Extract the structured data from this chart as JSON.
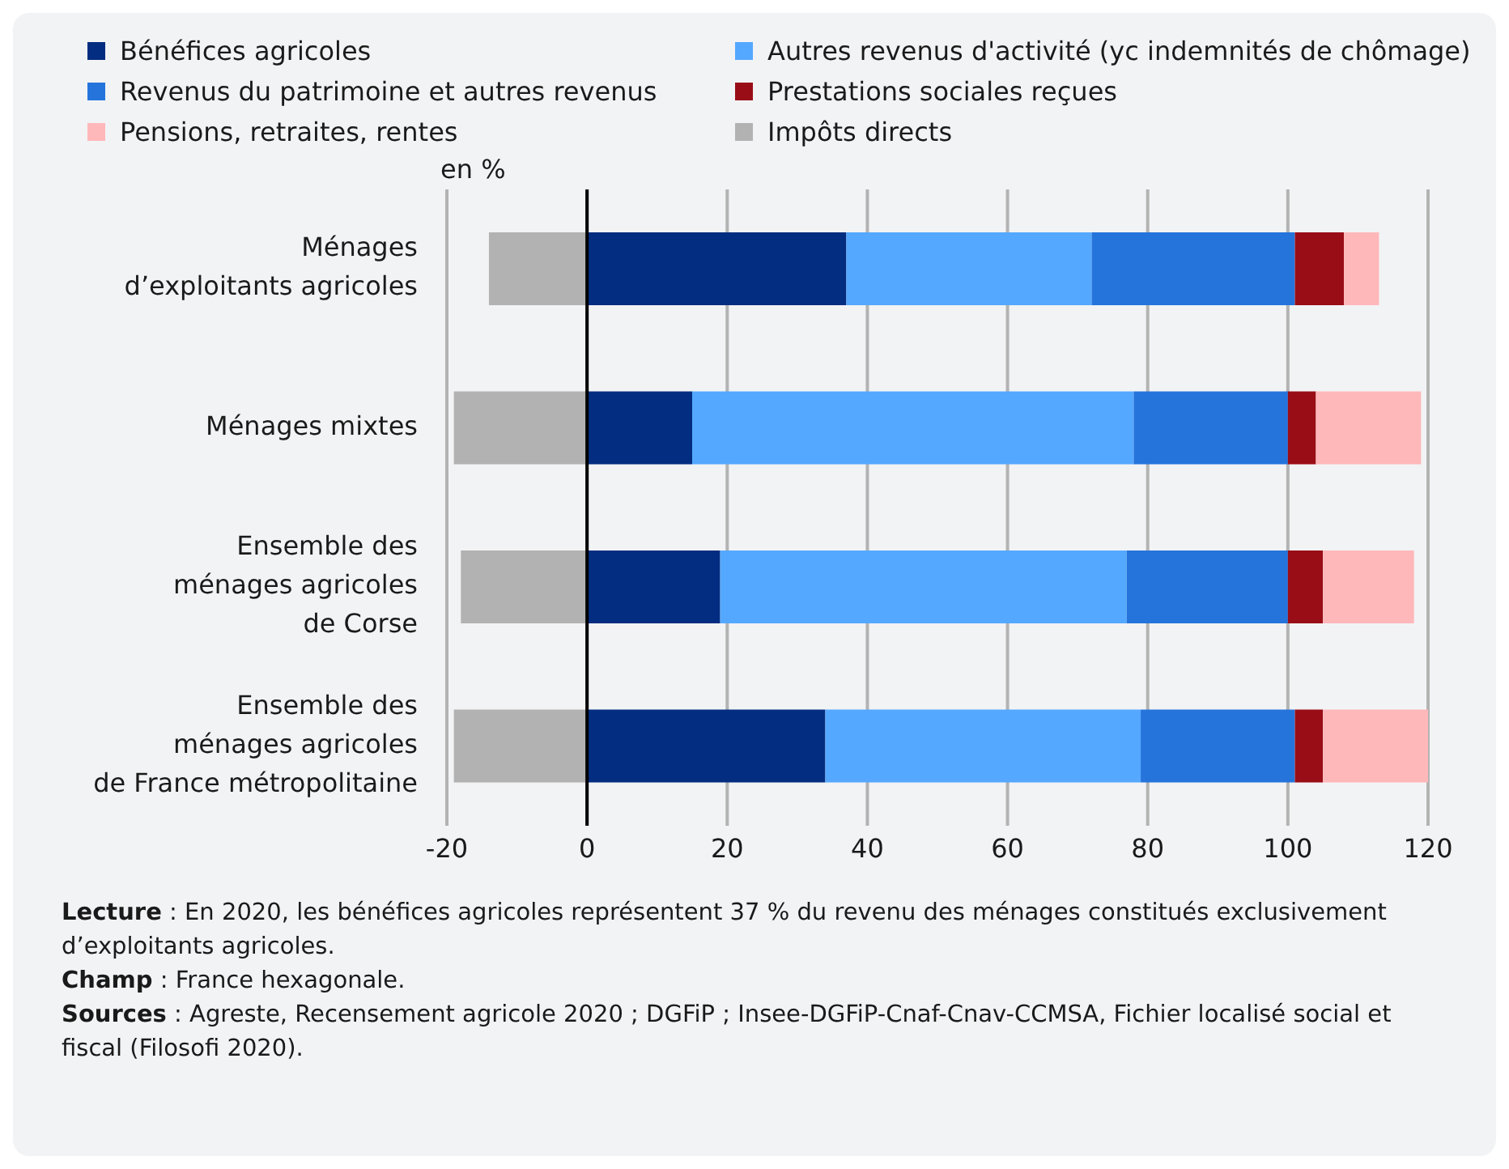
{
  "chart_data": {
    "type": "bar",
    "orientation": "horizontal",
    "stacked": true,
    "xlabel": "en %",
    "categories": [
      "Ménages\nd’exploitants agricoles",
      "Ménages mixtes",
      "Ensemble des\nménages agricoles\nde Corse",
      "Ensemble des\nménages agricoles\nde France métropolitaine"
    ],
    "series": [
      {
        "name": "Bénéfices agricoles",
        "color": "#032d80",
        "values": [
          37,
          15,
          19,
          34
        ]
      },
      {
        "name": "Autres revenus d'activité (yc indemnités de chômage)",
        "color": "#54a8ff",
        "values": [
          35,
          63,
          58,
          45
        ]
      },
      {
        "name": "Revenus du patrimoine et autres revenus",
        "color": "#2574dc",
        "values": [
          29,
          22,
          23,
          22
        ]
      },
      {
        "name": "Prestations sociales reçues",
        "color": "#990d17",
        "values": [
          7,
          4,
          5,
          4
        ]
      },
      {
        "name": "Pensions, retraites, rentes",
        "color": "#ffb8ba",
        "values": [
          5,
          15,
          13,
          15
        ]
      },
      {
        "name": "Impôts directs",
        "color": "#b2b2b2",
        "values": [
          -14,
          -19,
          -18,
          -19
        ]
      }
    ],
    "xlim": [
      -20,
      120
    ],
    "xticks": [
      -20,
      0,
      20,
      40,
      60,
      80,
      100,
      120
    ],
    "grid": "x",
    "legend": "top",
    "ref_lines": [
      {
        "axis": "x",
        "value": 0,
        "color": "#000000"
      }
    ],
    "annotations": [
      "Lecture : En 2020, les bénéfices agricoles représentent 37 % du revenu des ménages constitués exclusivement d’exploitants agricoles.",
      "Champ : France hexagonale.",
      "Sources : Agreste, Recensement agricole 2020 ; DGFiP ; Insee-DGFiP-Cnaf-Cnav-CCMSA, Fichier localisé social et fiscal (Filosofi 2020)."
    ]
  }
}
